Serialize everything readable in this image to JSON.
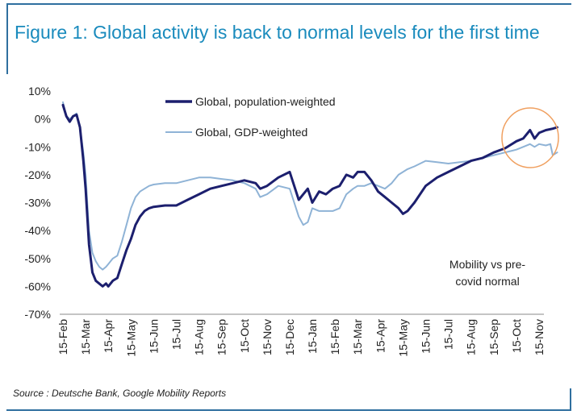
{
  "header": {
    "title": "Figure 1: Global activity is back to normal levels for the first time",
    "source": "Source : Deutsche Bank, Google Mobility Reports"
  },
  "chart_data": {
    "type": "line",
    "ylim": [
      -70,
      10
    ],
    "y_ticks": [
      "10%",
      "0%",
      "-10%",
      "-20%",
      "-30%",
      "-40%",
      "-50%",
      "-60%",
      "-70%"
    ],
    "x_ticks": [
      "15-Feb",
      "15-Mar",
      "15-Apr",
      "15-May",
      "15-Jun",
      "15-Jul",
      "15-Aug",
      "15-Sep",
      "15-Oct",
      "15-Nov",
      "15-Dec",
      "15-Jan",
      "15-Feb",
      "15-Mar",
      "15-Apr",
      "15-May",
      "15-Jun",
      "15-Jul",
      "15-Aug",
      "15-Sep",
      "15-Oct",
      "15-Nov"
    ],
    "legend_position": "top-center",
    "annotation": [
      "Mobility vs pre-",
      "covid normal"
    ],
    "highlight_circle_color": "#f0a060",
    "series": [
      {
        "name": "Global, population-weighted",
        "color": "#1c1f6e",
        "points": [
          [
            0,
            5
          ],
          [
            0.15,
            1
          ],
          [
            0.3,
            -1
          ],
          [
            0.45,
            1
          ],
          [
            0.6,
            1.5
          ],
          [
            0.75,
            -3
          ],
          [
            0.9,
            -15
          ],
          [
            1.0,
            -25
          ],
          [
            1.15,
            -45
          ],
          [
            1.3,
            -55
          ],
          [
            1.45,
            -58
          ],
          [
            1.6,
            -59
          ],
          [
            1.75,
            -60
          ],
          [
            1.9,
            -59
          ],
          [
            2.0,
            -60
          ],
          [
            2.2,
            -58
          ],
          [
            2.4,
            -57
          ],
          [
            2.6,
            -52
          ],
          [
            2.8,
            -47
          ],
          [
            3.0,
            -43
          ],
          [
            3.2,
            -38
          ],
          [
            3.4,
            -35
          ],
          [
            3.6,
            -33
          ],
          [
            3.8,
            -32
          ],
          [
            4.0,
            -31.5
          ],
          [
            4.5,
            -31
          ],
          [
            5.0,
            -31
          ],
          [
            5.5,
            -29
          ],
          [
            6.0,
            -27
          ],
          [
            6.5,
            -25
          ],
          [
            7.0,
            -24
          ],
          [
            7.5,
            -23
          ],
          [
            8.0,
            -22
          ],
          [
            8.5,
            -23
          ],
          [
            8.7,
            -25
          ],
          [
            9.0,
            -24
          ],
          [
            9.5,
            -21
          ],
          [
            10.0,
            -19
          ],
          [
            10.2,
            -24
          ],
          [
            10.4,
            -29
          ],
          [
            10.6,
            -27
          ],
          [
            10.8,
            -25
          ],
          [
            11.0,
            -30
          ],
          [
            11.3,
            -26
          ],
          [
            11.6,
            -27
          ],
          [
            11.9,
            -25
          ],
          [
            12.2,
            -24
          ],
          [
            12.5,
            -20
          ],
          [
            12.8,
            -21
          ],
          [
            13.0,
            -19
          ],
          [
            13.3,
            -19
          ],
          [
            13.6,
            -22
          ],
          [
            13.9,
            -26
          ],
          [
            14.2,
            -28
          ],
          [
            14.5,
            -30
          ],
          [
            14.8,
            -32
          ],
          [
            15.0,
            -34
          ],
          [
            15.2,
            -33
          ],
          [
            15.5,
            -30
          ],
          [
            16.0,
            -24
          ],
          [
            16.5,
            -21
          ],
          [
            17.0,
            -19
          ],
          [
            17.5,
            -17
          ],
          [
            18.0,
            -15
          ],
          [
            18.5,
            -14
          ],
          [
            19.0,
            -12
          ],
          [
            19.5,
            -10.5
          ],
          [
            20.0,
            -8
          ],
          [
            20.3,
            -7
          ],
          [
            20.6,
            -4
          ],
          [
            20.8,
            -7
          ],
          [
            21.0,
            -5
          ],
          [
            21.3,
            -4
          ],
          [
            21.6,
            -3.5
          ],
          [
            21.8,
            -3
          ]
        ]
      },
      {
        "name": "Global, GDP-weighted",
        "color": "#8fb3d6",
        "points": [
          [
            0,
            6
          ],
          [
            0.15,
            1
          ],
          [
            0.3,
            0
          ],
          [
            0.45,
            1
          ],
          [
            0.6,
            2
          ],
          [
            0.75,
            -3
          ],
          [
            0.9,
            -12
          ],
          [
            1.0,
            -20
          ],
          [
            1.15,
            -40
          ],
          [
            1.3,
            -48
          ],
          [
            1.45,
            -51
          ],
          [
            1.6,
            -53
          ],
          [
            1.75,
            -54
          ],
          [
            1.9,
            -53
          ],
          [
            2.0,
            -52
          ],
          [
            2.2,
            -50
          ],
          [
            2.4,
            -49
          ],
          [
            2.6,
            -44
          ],
          [
            2.8,
            -38
          ],
          [
            3.0,
            -32
          ],
          [
            3.2,
            -28
          ],
          [
            3.4,
            -26
          ],
          [
            3.6,
            -25
          ],
          [
            3.8,
            -24
          ],
          [
            4.0,
            -23.5
          ],
          [
            4.5,
            -23
          ],
          [
            5.0,
            -23
          ],
          [
            5.5,
            -22
          ],
          [
            6.0,
            -21
          ],
          [
            6.5,
            -21
          ],
          [
            7.0,
            -21.5
          ],
          [
            7.5,
            -22
          ],
          [
            8.0,
            -23
          ],
          [
            8.5,
            -25
          ],
          [
            8.7,
            -28
          ],
          [
            9.0,
            -27
          ],
          [
            9.5,
            -24
          ],
          [
            10.0,
            -25
          ],
          [
            10.2,
            -30
          ],
          [
            10.4,
            -35
          ],
          [
            10.6,
            -38
          ],
          [
            10.8,
            -37
          ],
          [
            11.0,
            -32
          ],
          [
            11.3,
            -33
          ],
          [
            11.6,
            -33
          ],
          [
            11.9,
            -33
          ],
          [
            12.2,
            -32
          ],
          [
            12.5,
            -27
          ],
          [
            12.8,
            -25
          ],
          [
            13.0,
            -24
          ],
          [
            13.3,
            -24
          ],
          [
            13.6,
            -23
          ],
          [
            13.9,
            -24
          ],
          [
            14.2,
            -25
          ],
          [
            14.5,
            -23
          ],
          [
            14.8,
            -20
          ],
          [
            15.0,
            -19
          ],
          [
            15.2,
            -18
          ],
          [
            15.5,
            -17
          ],
          [
            16.0,
            -15
          ],
          [
            16.5,
            -15.5
          ],
          [
            17.0,
            -16
          ],
          [
            17.5,
            -15.5
          ],
          [
            18.0,
            -15
          ],
          [
            18.5,
            -14
          ],
          [
            19.0,
            -13
          ],
          [
            19.5,
            -12
          ],
          [
            20.0,
            -11
          ],
          [
            20.3,
            -10
          ],
          [
            20.6,
            -9
          ],
          [
            20.8,
            -10
          ],
          [
            21.0,
            -9
          ],
          [
            21.3,
            -9.5
          ],
          [
            21.5,
            -9
          ],
          [
            21.6,
            -13
          ],
          [
            21.8,
            -12
          ]
        ]
      }
    ]
  }
}
